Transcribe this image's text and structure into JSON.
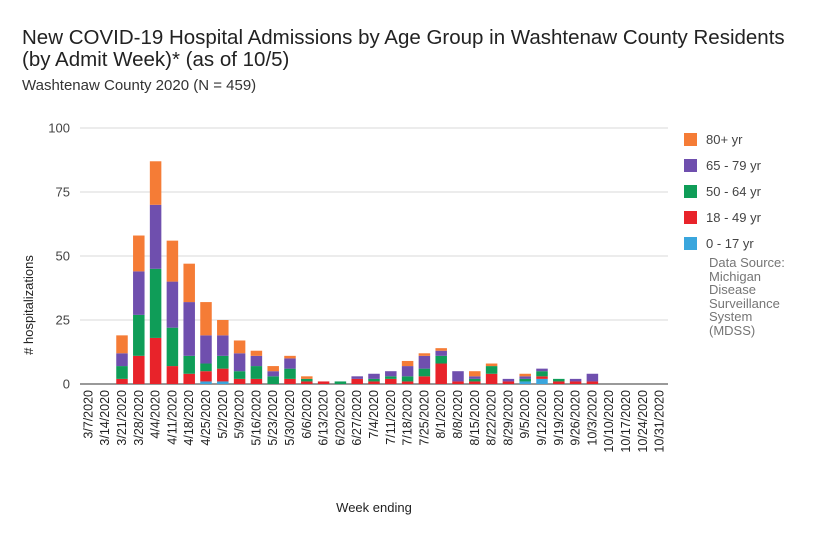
{
  "title_line1": "New COVID-19 Hospital Admissions by Age Group in Washtenaw County Residents",
  "title_line2": "(by Admit Week)* (as of 10/5)",
  "subtitle": "Washtenaw County 2020 (N = 459)",
  "source_lines": [
    "Data Source:",
    "Michigan",
    "Disease",
    "Surveillance",
    "System",
    "(MDSS)"
  ],
  "chart_data": {
    "type": "bar",
    "stacked": true,
    "xlabel": "Week ending",
    "ylabel": "# hospitalizations",
    "ylim": [
      0,
      100
    ],
    "yticks": [
      0,
      25,
      50,
      75,
      100
    ],
    "grid": true,
    "legend_position": "right",
    "categories": [
      "3/7/2020",
      "3/14/2020",
      "3/21/2020",
      "3/28/2020",
      "4/4/2020",
      "4/11/2020",
      "4/18/2020",
      "4/25/2020",
      "5/2/2020",
      "5/9/2020",
      "5/16/2020",
      "5/23/2020",
      "5/30/2020",
      "6/6/2020",
      "6/13/2020",
      "6/20/2020",
      "6/27/2020",
      "7/4/2020",
      "7/11/2020",
      "7/18/2020",
      "7/25/2020",
      "8/1/2020",
      "8/8/2020",
      "8/15/2020",
      "8/22/2020",
      "8/29/2020",
      "9/5/2020",
      "9/12/2020",
      "9/19/2020",
      "9/26/2020",
      "10/3/2020",
      "10/10/2020",
      "10/17/2020",
      "10/24/2020",
      "10/31/2020"
    ],
    "series": [
      {
        "name": "0 - 17 yr",
        "color": "#3aa6dd",
        "values": [
          0,
          0,
          0,
          0,
          0,
          0,
          0,
          1,
          1,
          0,
          0,
          0,
          0,
          0,
          0,
          0,
          0,
          0,
          0,
          0,
          0,
          0,
          0,
          0,
          0,
          0,
          1,
          2,
          0,
          0,
          0,
          0,
          0,
          0,
          0
        ]
      },
      {
        "name": "18 - 49 yr",
        "color": "#e8232a",
        "values": [
          0,
          0,
          2,
          11,
          18,
          7,
          4,
          4,
          5,
          2,
          2,
          0,
          2,
          1,
          1,
          0,
          2,
          1,
          2,
          1,
          3,
          8,
          1,
          1,
          4,
          1,
          0,
          1,
          1,
          1,
          1,
          0,
          0,
          0,
          0
        ]
      },
      {
        "name": "50 - 64 yr",
        "color": "#0f9d58",
        "values": [
          0,
          0,
          5,
          16,
          27,
          15,
          7,
          3,
          5,
          3,
          5,
          3,
          4,
          1,
          0,
          1,
          0,
          1,
          1,
          2,
          3,
          3,
          0,
          1,
          3,
          0,
          1,
          2,
          1,
          0,
          0,
          0,
          0,
          0,
          0
        ]
      },
      {
        "name": "65 - 79 yr",
        "color": "#6f4fae",
        "values": [
          0,
          0,
          5,
          17,
          25,
          18,
          21,
          11,
          8,
          7,
          4,
          2,
          4,
          0,
          0,
          0,
          1,
          2,
          2,
          4,
          5,
          2,
          4,
          1,
          0,
          1,
          1,
          1,
          0,
          1,
          3,
          0,
          0,
          0,
          0
        ]
      },
      {
        "name": "80+ yr",
        "color": "#f57c36",
        "values": [
          0,
          0,
          7,
          14,
          17,
          16,
          15,
          13,
          6,
          5,
          2,
          2,
          1,
          1,
          0,
          0,
          0,
          0,
          0,
          2,
          1,
          1,
          0,
          2,
          1,
          0,
          1,
          0,
          0,
          0,
          0,
          0,
          0,
          0,
          0
        ]
      }
    ]
  }
}
